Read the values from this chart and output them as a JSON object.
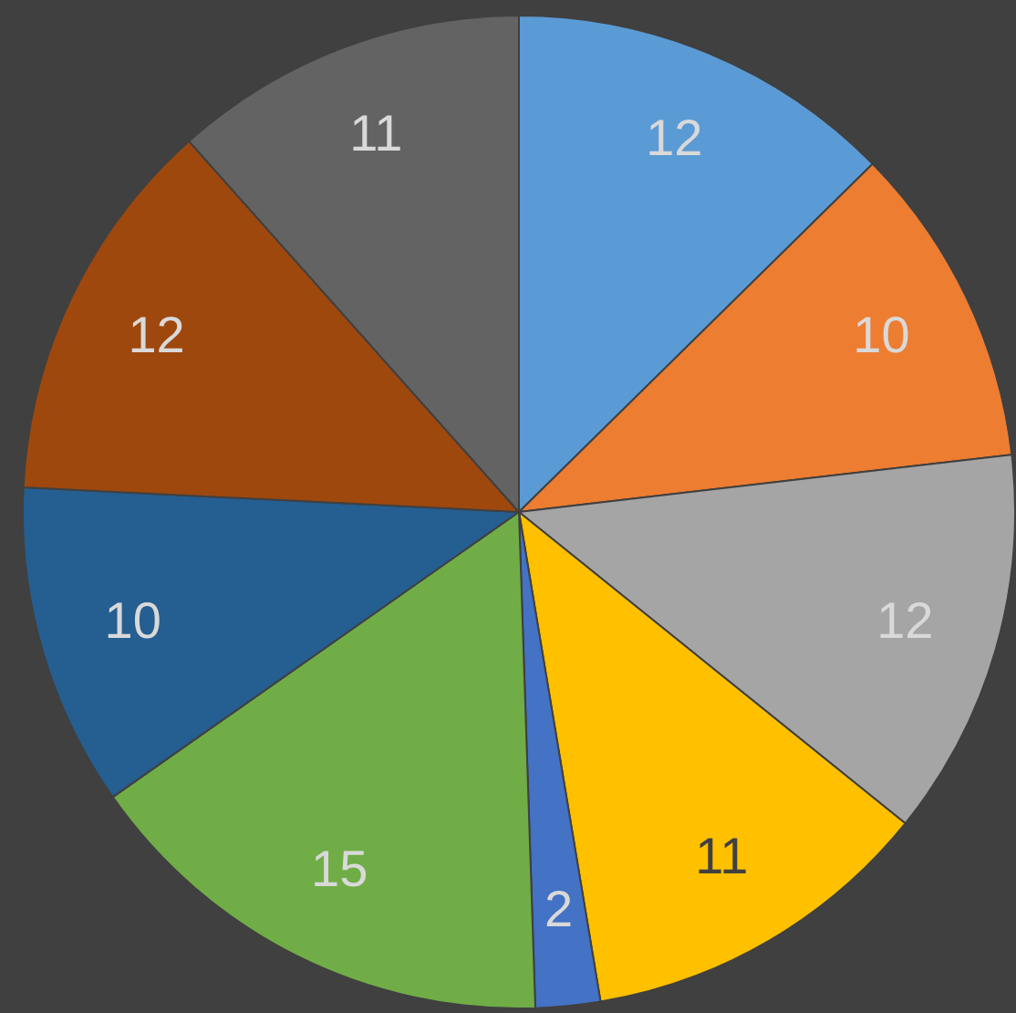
{
  "chart_data": {
    "type": "pie",
    "categories": [
      null,
      null,
      null,
      null,
      null,
      null,
      null,
      null,
      null
    ],
    "values": [
      12,
      10,
      12,
      11,
      2,
      15,
      10,
      12,
      11
    ],
    "colors": [
      "#5b9bd5",
      "#ed7d31",
      "#a5a5a5",
      "#ffc000",
      "#4472c4",
      "#70ad47",
      "#255e91",
      "#9e480e",
      "#636363"
    ],
    "data_labels": true,
    "legend": false
  }
}
